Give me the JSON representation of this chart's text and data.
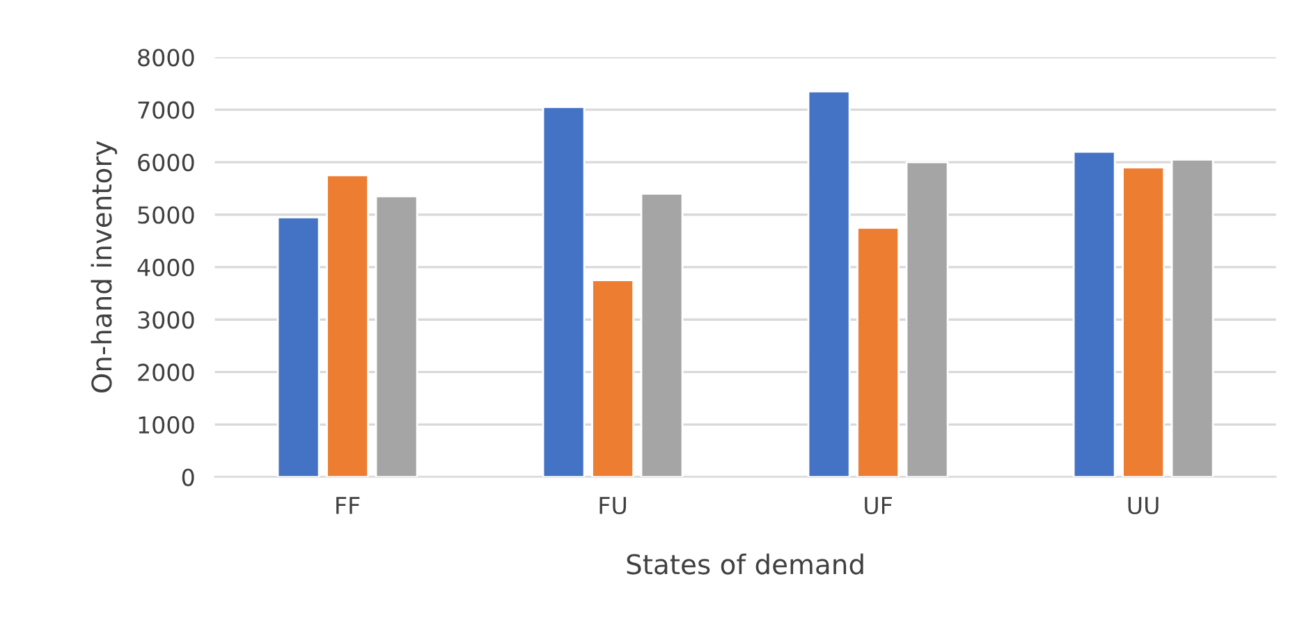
{
  "chart_data": {
    "type": "bar",
    "xlabel": "States of demand",
    "ylabel": "On-hand inventory",
    "categories": [
      "FF",
      "FU",
      "UF",
      "UU"
    ],
    "series": [
      {
        "color": "#4472c4",
        "values": [
          4950,
          7050,
          7350,
          6200
        ]
      },
      {
        "color": "#ed7d31",
        "values": [
          5750,
          3750,
          4750,
          5900
        ]
      },
      {
        "color": "#a5a5a5",
        "values": [
          5350,
          5400,
          6000,
          6050
        ]
      }
    ],
    "ylim": [
      0,
      8000
    ],
    "yticks": [
      0,
      1000,
      2000,
      3000,
      4000,
      5000,
      6000,
      7000,
      8000
    ],
    "grid": "y",
    "legend": false
  }
}
